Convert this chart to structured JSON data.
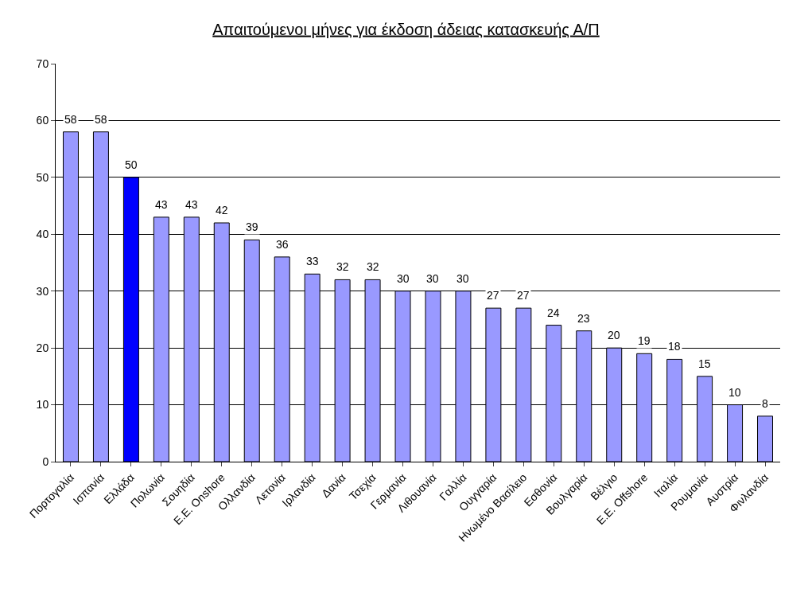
{
  "chart_data": {
    "type": "bar",
    "title": "Απαιτούμενοι μήνες για έκδοση άδειας κατασκευής Α/Π",
    "categories": [
      "Πορτογαλία",
      "Ισπανία",
      "Ελλάδα",
      "Πολωνία",
      "Σουηδία",
      "Ε.Ε. Onshore",
      "Ολλανδία",
      "Λετονία",
      "Ιρλανδία",
      "Δανία",
      "Τσεχία",
      "Γερμανία",
      "Λιθουανία",
      "Γαλλία",
      "Ουγγαρία",
      "Ηνωμένο Βασίλειο",
      "Εσθονία",
      "Βουλγαρία",
      "Βέλγιο",
      "Ε.Ε. Offshore",
      "Ιταλία",
      "Ρουμανία",
      "Αυστρία",
      "Φινλανδία"
    ],
    "values": [
      58,
      58,
      50,
      43,
      43,
      42,
      39,
      36,
      33,
      32,
      32,
      30,
      30,
      30,
      27,
      27,
      24,
      23,
      20,
      19,
      18,
      15,
      10,
      8
    ],
    "colors": [
      "#9999ff",
      "#9999ff",
      "#0000ff",
      "#9999ff",
      "#9999ff",
      "#9999ff",
      "#9999ff",
      "#9999ff",
      "#9999ff",
      "#9999ff",
      "#9999ff",
      "#9999ff",
      "#9999ff",
      "#9999ff",
      "#9999ff",
      "#9999ff",
      "#9999ff",
      "#9999ff",
      "#9999ff",
      "#9999ff",
      "#9999ff",
      "#9999ff",
      "#9999ff",
      "#9999ff"
    ],
    "ylim": [
      0,
      70
    ],
    "yticks": [
      0,
      10,
      20,
      30,
      40,
      50,
      60,
      70
    ],
    "grid": "y",
    "data_labels": true,
    "legend": false
  }
}
